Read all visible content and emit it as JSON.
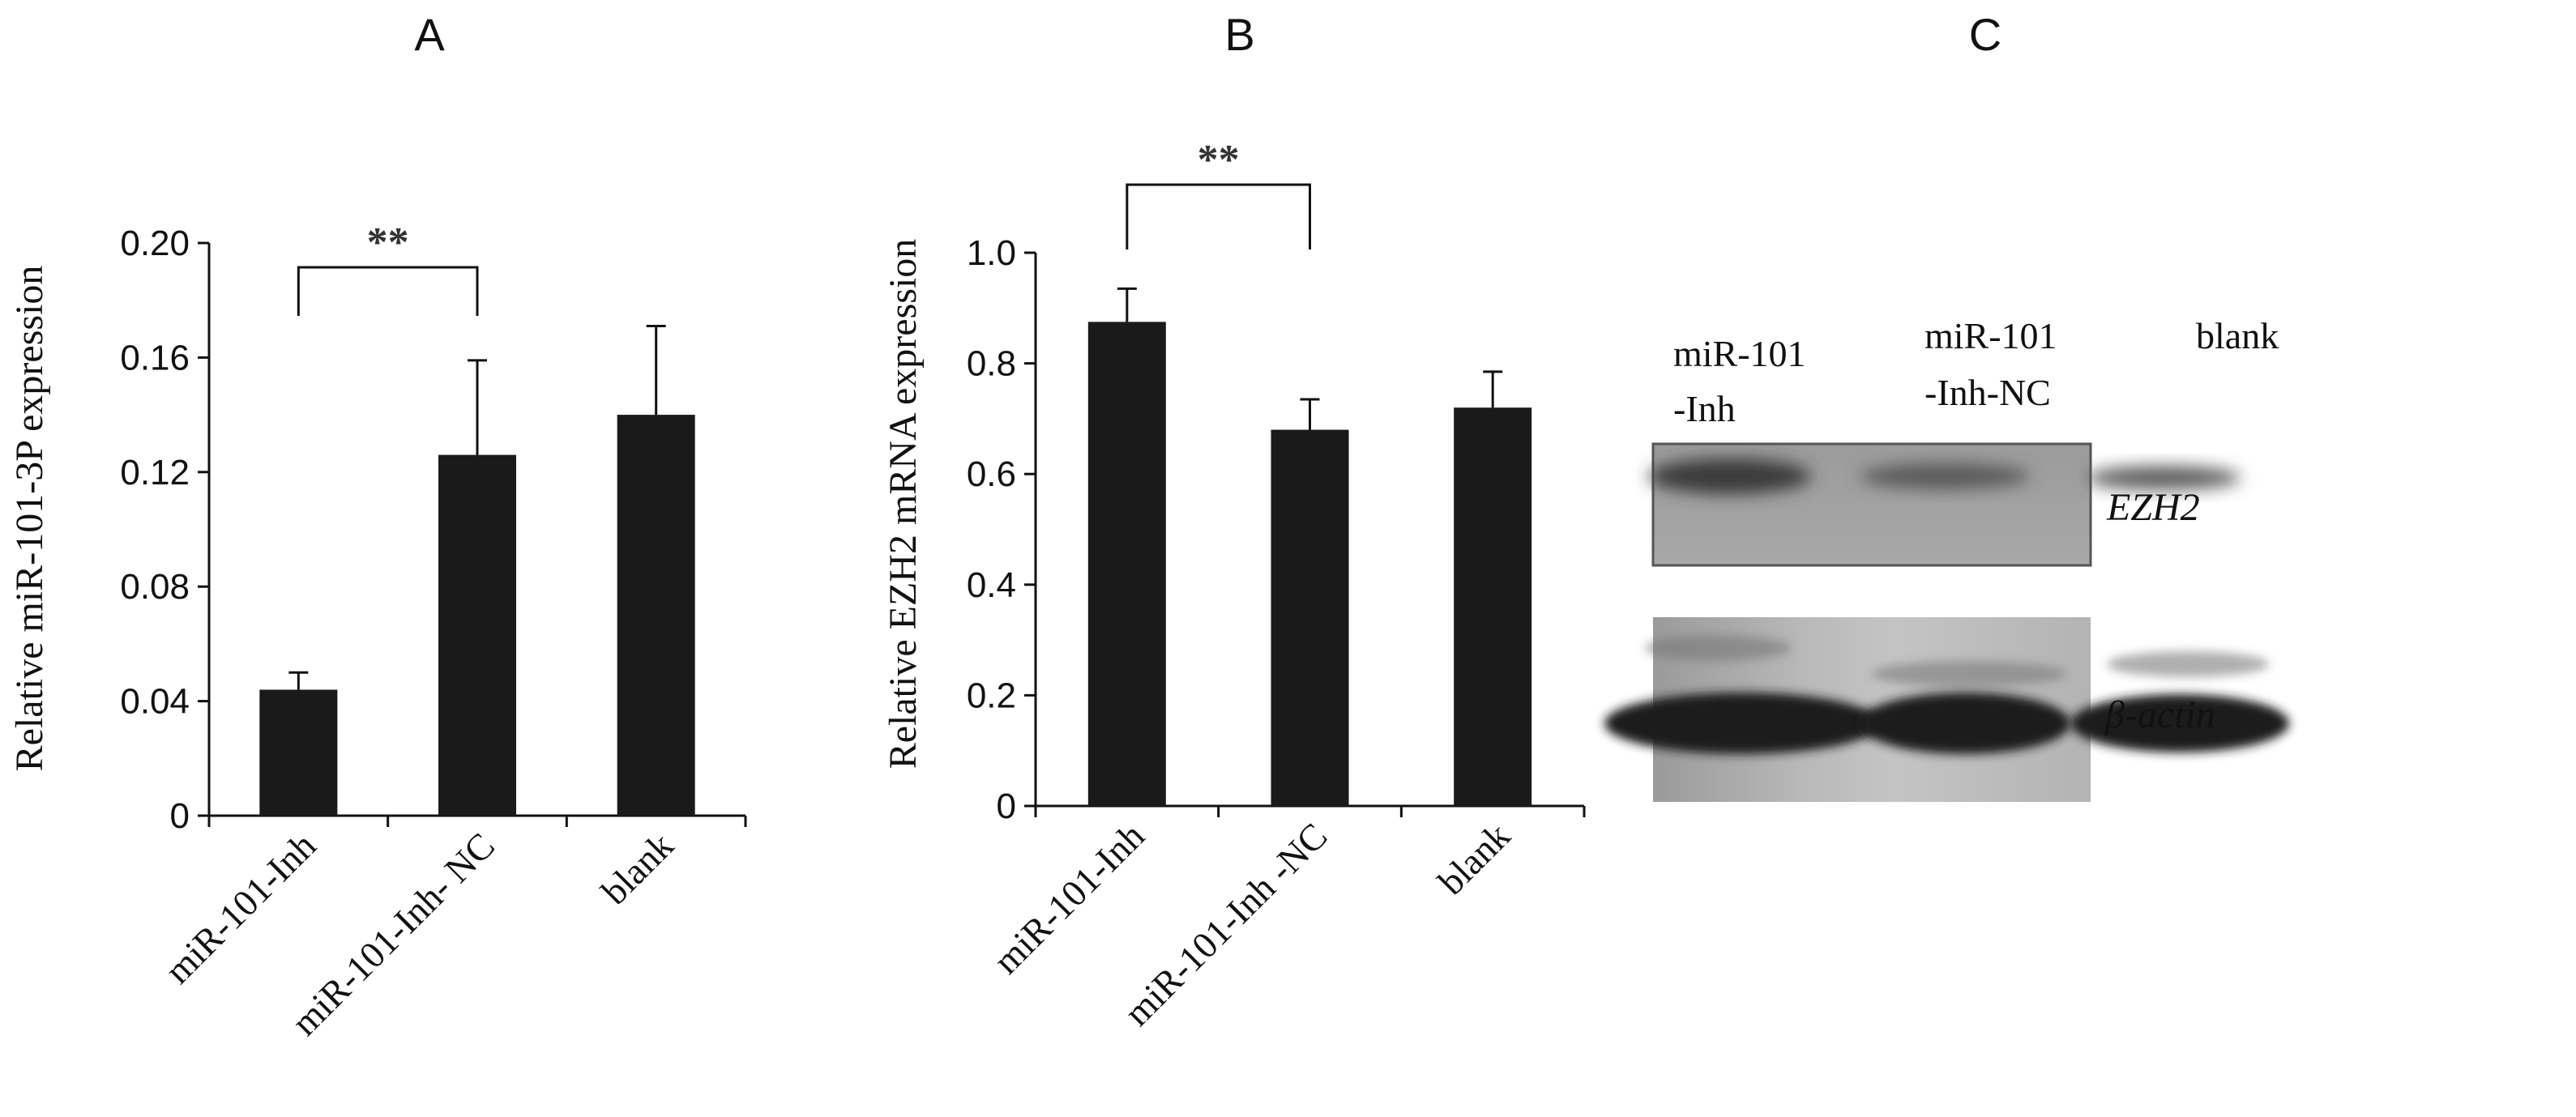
{
  "chart_data": [
    {
      "type": "bar",
      "panel": "A",
      "ylabel": "Relative miR-101-3P expression",
      "categories": [
        "miR-101-Inh",
        "miR-101-Inh- NC",
        "blank"
      ],
      "values": [
        0.044,
        0.126,
        0.14
      ],
      "errors": [
        0.006,
        0.033,
        0.031
      ],
      "ylim": [
        0,
        0.2
      ],
      "yticks": [
        "0",
        "0.04",
        "0.08",
        "0.12",
        "0.16",
        "0.20"
      ],
      "significance": {
        "from": 0,
        "to": 1,
        "label": "**"
      },
      "grid": false,
      "bar_color": "#1a1a1a"
    },
    {
      "type": "bar",
      "panel": "B",
      "ylabel": "Relative EZH2 mRNA  expression",
      "categories": [
        "miR-101-Inh",
        "miR-101-Inh -NC",
        "blank"
      ],
      "values": [
        0.875,
        0.68,
        0.72
      ],
      "errors": [
        0.06,
        0.055,
        0.065
      ],
      "ylim": [
        0,
        1.0
      ],
      "yticks": [
        "0",
        "0.2",
        "0.4",
        "0.6",
        "0.8",
        "1.0"
      ],
      "significance": {
        "from": 0,
        "to": 1,
        "label": "**"
      },
      "grid": false,
      "bar_color": "#1a1a1a"
    }
  ],
  "blot": {
    "panel": "C",
    "lanes": [
      {
        "line1": "miR-101",
        "line2": "-Inh"
      },
      {
        "line1": "miR-101",
        "line2": "-Inh-NC"
      },
      {
        "line1": "blank",
        "line2": ""
      }
    ],
    "proteins": [
      "EZH2",
      "β-actin"
    ]
  }
}
